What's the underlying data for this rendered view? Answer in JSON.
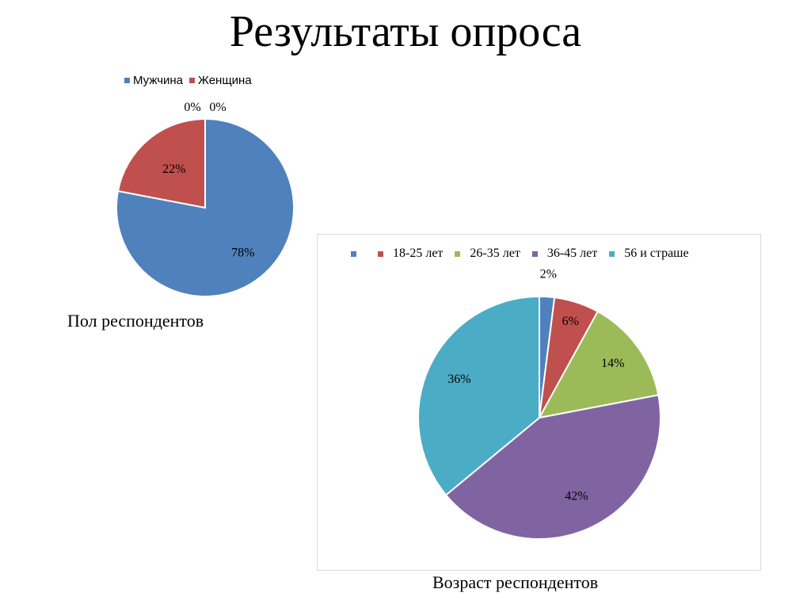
{
  "title": "Результаты опроса",
  "chart_data": [
    {
      "type": "pie",
      "title": "Пол респондентов",
      "categories": [
        "Мужчина",
        "Женщина",
        "",
        ""
      ],
      "values": [
        78,
        22,
        0,
        0
      ],
      "labels": [
        "78%",
        "22%",
        "0%",
        "0%"
      ],
      "legend": [
        "Мужчина",
        "Женщина"
      ],
      "colors": [
        "#4f81bd",
        "#c0504d"
      ],
      "legend_position": "top"
    },
    {
      "type": "pie",
      "title": "Возраст респондентов",
      "categories": [
        "",
        "18-25 лет",
        "26-35 лет",
        "36-45 лет",
        "56 и страше"
      ],
      "values": [
        2,
        6,
        14,
        42,
        36
      ],
      "labels": [
        "2%",
        "6%",
        "14%",
        "42%",
        "36%"
      ],
      "legend": [
        "",
        "18-25 лет",
        "26-35 лет",
        "36-45 лет",
        "56 и страше"
      ],
      "colors": [
        "#4f81bd",
        "#c0504d",
        "#9bbb59",
        "#8064a2",
        "#4bacc6"
      ],
      "legend_position": "top"
    }
  ]
}
